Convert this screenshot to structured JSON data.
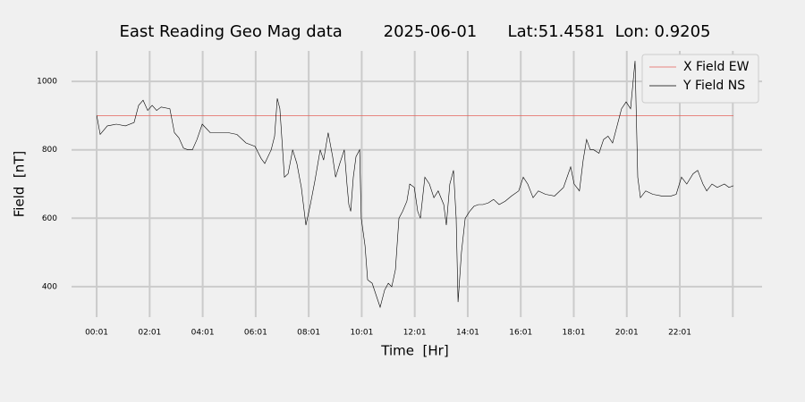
{
  "chart_data": {
    "type": "line",
    "title": "East Reading Geo Mag data        2025-06-01      Lat:51.4581  Lon: 0.9205",
    "xlabel": "Time  [Hr]",
    "ylabel": "Field  [nT]",
    "xlim": [
      -0.93,
      25.12
    ],
    "ylim": [
      311,
      1089
    ],
    "xticks": [
      {
        "value": 0.0167,
        "label": "00:01"
      },
      {
        "value": 2.0167,
        "label": "02:01"
      },
      {
        "value": 4.0167,
        "label": "04:01"
      },
      {
        "value": 6.0167,
        "label": "06:01"
      },
      {
        "value": 8.0167,
        "label": "08:01"
      },
      {
        "value": 10.0167,
        "label": "10:01"
      },
      {
        "value": 12.0167,
        "label": "12:01"
      },
      {
        "value": 14.0167,
        "label": "14:01"
      },
      {
        "value": 16.0167,
        "label": "16:01"
      },
      {
        "value": 18.0167,
        "label": "18:01"
      },
      {
        "value": 20.0167,
        "label": "20:01"
      },
      {
        "value": 22.0167,
        "label": "22:01"
      },
      {
        "value": 24.0167,
        "label": null
      }
    ],
    "yticks": [
      400,
      600,
      800,
      1000
    ],
    "grid": true,
    "legend": "upper right",
    "series": [
      {
        "name": "X Field EW",
        "color": "#e5625a",
        "x": [
          0.02,
          24.04
        ],
        "values": [
          900,
          900
        ]
      },
      {
        "name": "Y Field NS",
        "color": "#000000",
        "x": [
          0.02,
          0.15,
          0.42,
          0.76,
          1.1,
          1.43,
          1.6,
          1.77,
          1.94,
          2.11,
          2.28,
          2.45,
          2.78,
          2.95,
          3.12,
          3.29,
          3.46,
          3.63,
          3.8,
          4.0,
          4.3,
          4.64,
          4.98,
          5.31,
          5.65,
          5.99,
          6.22,
          6.36,
          6.6,
          6.73,
          6.83,
          6.93,
          7.1,
          7.24,
          7.41,
          7.57,
          7.74,
          7.91,
          8.08,
          8.25,
          8.45,
          8.58,
          8.75,
          8.92,
          9.03,
          9.19,
          9.36,
          9.46,
          9.53,
          9.6,
          9.7,
          9.8,
          9.94,
          10.0,
          10.14,
          10.24,
          10.41,
          10.54,
          10.71,
          10.88,
          11.02,
          11.15,
          11.29,
          11.42,
          11.56,
          11.72,
          11.83,
          12.0,
          12.13,
          12.23,
          12.4,
          12.57,
          12.74,
          12.9,
          13.11,
          13.21,
          13.34,
          13.48,
          13.58,
          13.65,
          13.78,
          13.92,
          14.09,
          14.25,
          14.42,
          14.59,
          14.79,
          14.99,
          15.2,
          15.43,
          15.67,
          15.94,
          16.11,
          16.28,
          16.48,
          16.68,
          16.95,
          17.29,
          17.63,
          17.9,
          18.03,
          18.23,
          18.37,
          18.5,
          18.64,
          18.77,
          18.97,
          19.14,
          19.31,
          19.48,
          19.65,
          19.82,
          19.99,
          20.16,
          20.33,
          20.43,
          20.53,
          20.73,
          21.0,
          21.34,
          21.68,
          21.88,
          22.08,
          22.28,
          22.52,
          22.69,
          22.89,
          23.03,
          23.23,
          23.43,
          23.7,
          23.87,
          24.04
        ],
        "values": [
          900,
          845,
          870,
          875,
          870,
          880,
          930,
          945,
          915,
          930,
          915,
          925,
          920,
          850,
          835,
          805,
          800,
          800,
          830,
          875,
          850,
          850,
          850,
          845,
          820,
          810,
          775,
          760,
          800,
          840,
          950,
          920,
          720,
          730,
          800,
          760,
          690,
          580,
          640,
          710,
          800,
          770,
          850,
          780,
          720,
          760,
          800,
          700,
          640,
          620,
          720,
          780,
          800,
          600,
          520,
          420,
          410,
          380,
          340,
          390,
          410,
          400,
          450,
          600,
          620,
          650,
          700,
          690,
          620,
          600,
          720,
          700,
          660,
          680,
          640,
          580,
          700,
          740,
          600,
          355,
          500,
          600,
          620,
          635,
          640,
          640,
          645,
          655,
          640,
          650,
          665,
          680,
          720,
          700,
          660,
          680,
          670,
          665,
          690,
          750,
          700,
          680,
          770,
          830,
          800,
          800,
          790,
          830,
          840,
          820,
          870,
          920,
          940,
          920,
          1060,
          720,
          660,
          680,
          670,
          665,
          665,
          670,
          720,
          700,
          730,
          740,
          700,
          680,
          700,
          690,
          700,
          690,
          695
        ]
      }
    ]
  }
}
